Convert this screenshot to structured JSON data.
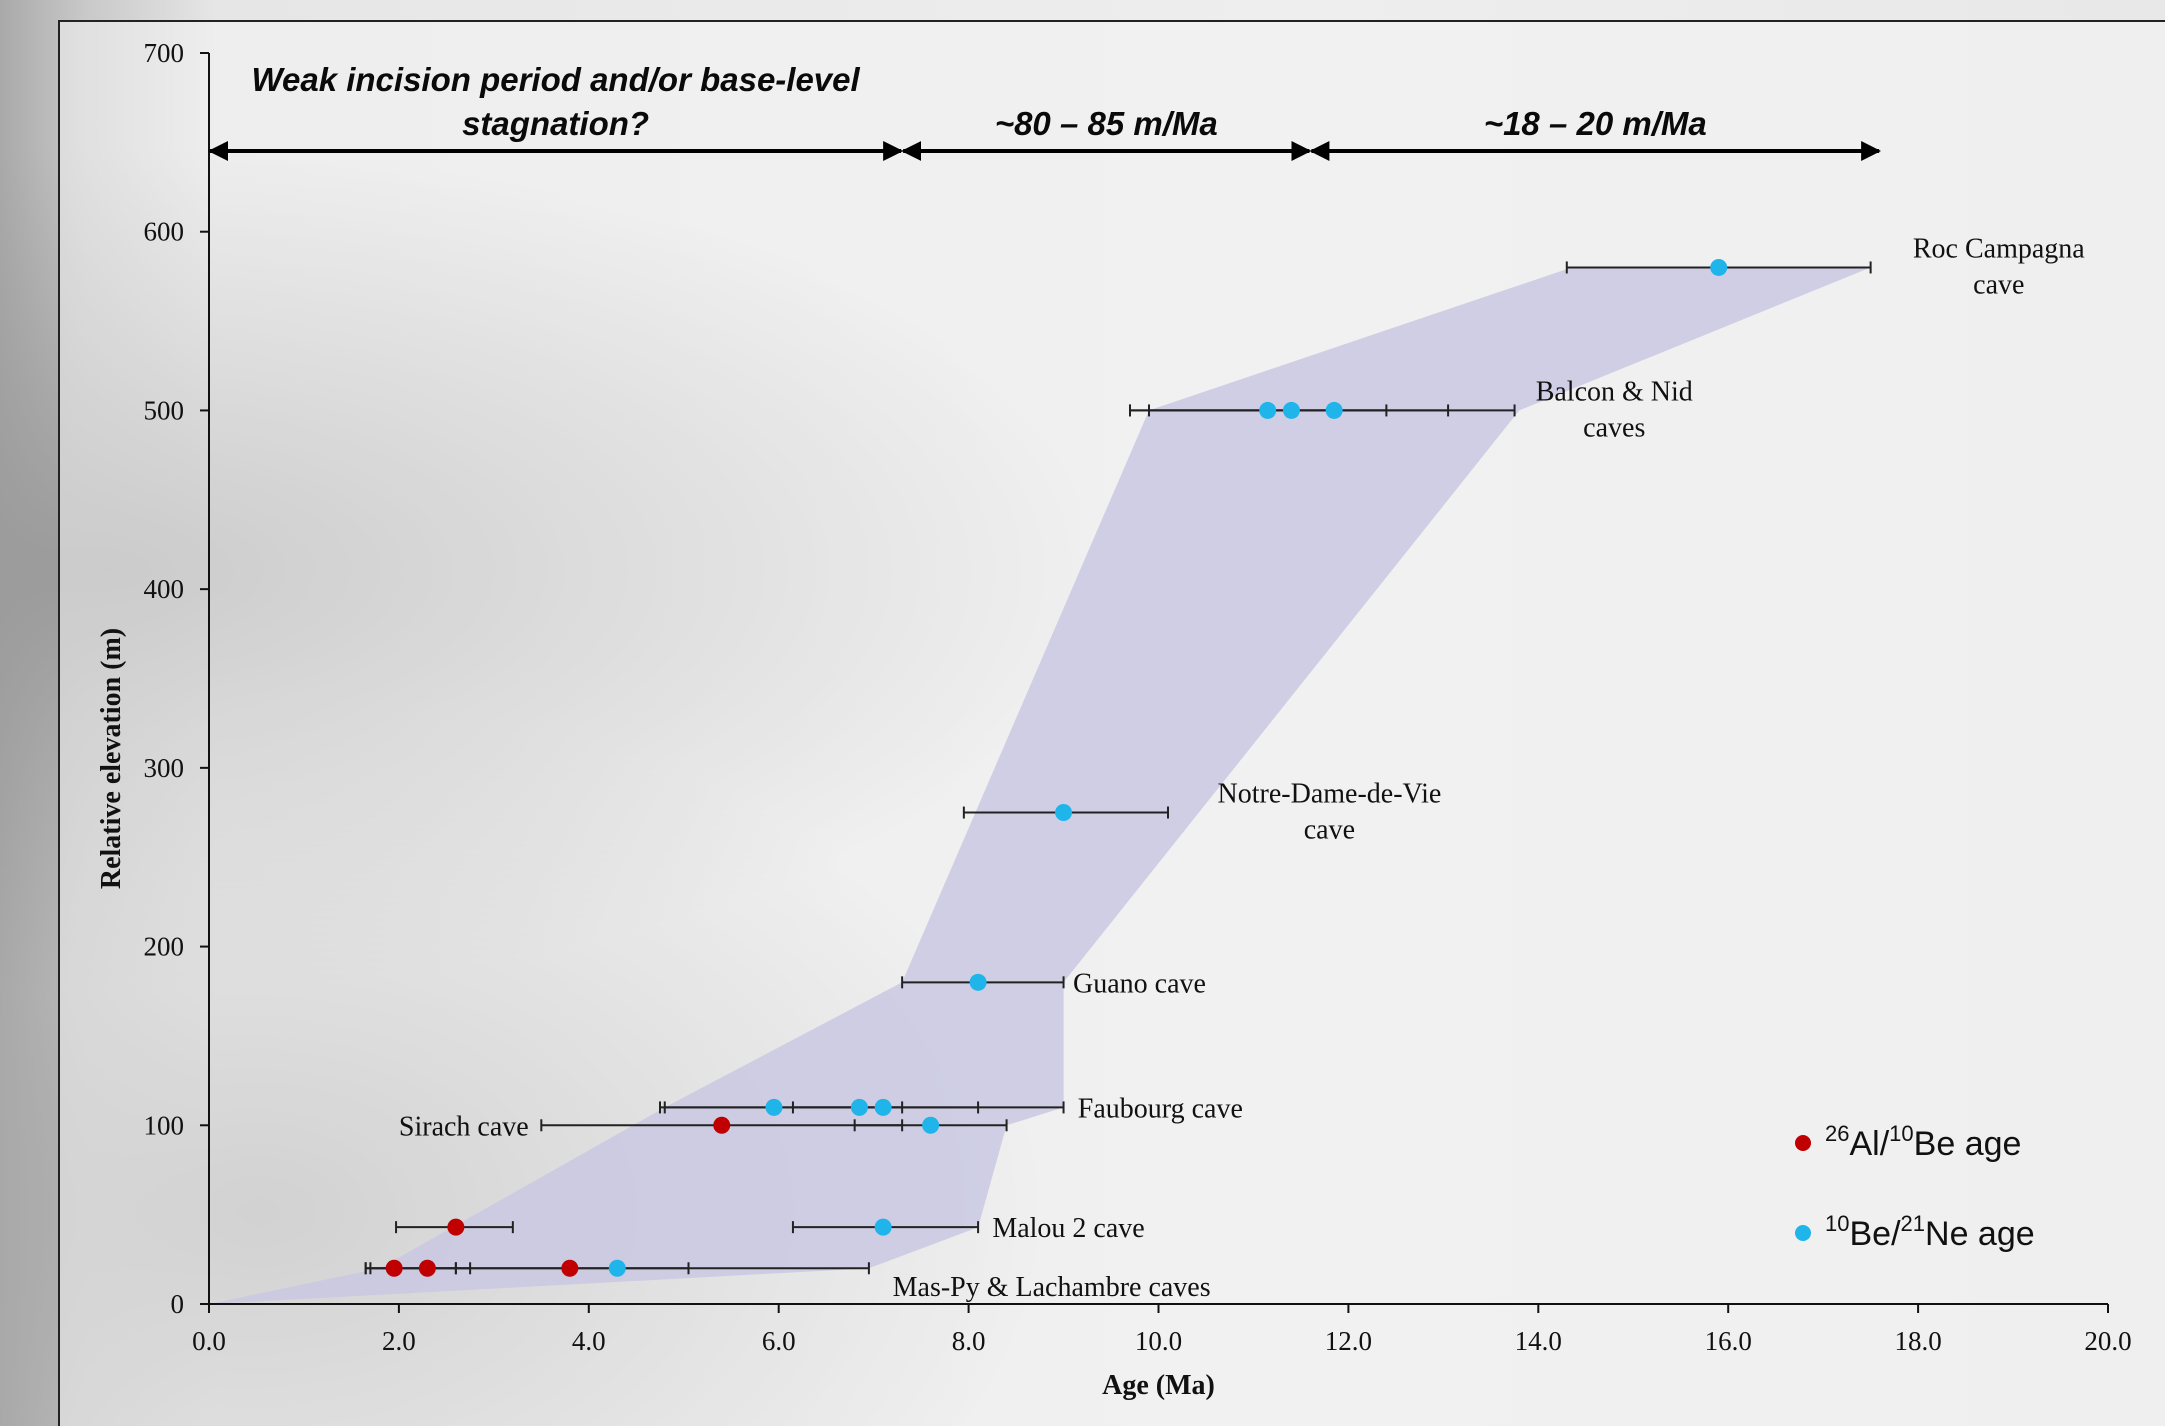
{
  "chart_data": {
    "type": "scatter",
    "xlabel": "Age (Ma)",
    "ylabel": "Relative elevation (m)",
    "xlim": [
      0,
      20
    ],
    "ylim": [
      0,
      700
    ],
    "x_ticks": [
      "0.0",
      "2.0",
      "4.0",
      "6.0",
      "8.0",
      "10.0",
      "12.0",
      "14.0",
      "16.0",
      "18.0",
      "20.0"
    ],
    "y_ticks": [
      "0",
      "100",
      "200",
      "300",
      "400",
      "500",
      "600",
      "700"
    ],
    "colors": {
      "al_be": "#c00000",
      "be_ne": "#1fb4ea",
      "envelope": "#c9c8e2",
      "axis": "#111111"
    },
    "series": [
      {
        "name": "26Al/10Be age",
        "label_parts": [
          [
            "26",
            "sup"
          ],
          [
            "Al/",
            ""
          ],
          [
            "10",
            "sup"
          ],
          [
            "Be age",
            ""
          ]
        ],
        "color": "#c00000",
        "points": [
          {
            "x": 1.95,
            "y": 20,
            "xmin": 1.7,
            "xmax": 2.6
          },
          {
            "x": 2.3,
            "y": 20,
            "xmin": 1.65,
            "xmax": 2.75
          },
          {
            "x": 3.8,
            "y": 20,
            "xmin": 2.6,
            "xmax": 5.05
          },
          {
            "x": 2.6,
            "y": 43,
            "xmin": 1.97,
            "xmax": 3.2
          },
          {
            "x": 5.4,
            "y": 100,
            "xmin": 3.5,
            "xmax": 7.3
          }
        ]
      },
      {
        "name": "10Be/21Ne age",
        "label_parts": [
          [
            "10",
            "sup"
          ],
          [
            "Be/",
            ""
          ],
          [
            "21",
            "sup"
          ],
          [
            "Ne age",
            ""
          ]
        ],
        "color": "#1fb4ea",
        "points": [
          {
            "x": 4.3,
            "y": 20,
            "xmin": 1.65,
            "xmax": 6.95
          },
          {
            "x": 7.1,
            "y": 43,
            "xmin": 6.15,
            "xmax": 8.1
          },
          {
            "x": 7.6,
            "y": 100,
            "xmin": 6.8,
            "xmax": 8.4
          },
          {
            "x": 5.95,
            "y": 110,
            "xmin": 4.75,
            "xmax": 7.3
          },
          {
            "x": 6.85,
            "y": 110,
            "xmin": 6.15,
            "xmax": 8.1
          },
          {
            "x": 7.1,
            "y": 110,
            "xmin": 4.8,
            "xmax": 9.0
          },
          {
            "x": 8.1,
            "y": 180,
            "xmin": 7.3,
            "xmax": 9.0
          },
          {
            "x": 9.0,
            "y": 275,
            "xmin": 7.95,
            "xmax": 10.1
          },
          {
            "x": 11.15,
            "y": 500,
            "xmin": 9.9,
            "xmax": 12.4
          },
          {
            "x": 11.4,
            "y": 500,
            "xmin": 9.7,
            "xmax": 13.05
          },
          {
            "x": 11.85,
            "y": 500,
            "xmin": 9.7,
            "xmax": 13.75
          },
          {
            "x": 15.9,
            "y": 580,
            "xmin": 14.3,
            "xmax": 17.5
          }
        ]
      }
    ],
    "envelope": [
      [
        0,
        0
      ],
      [
        1.8,
        20
      ],
      [
        4.8,
        110
      ],
      [
        7.3,
        180
      ],
      [
        9.9,
        500
      ],
      [
        14.35,
        580
      ],
      [
        17.5,
        580
      ],
      [
        13.8,
        500
      ],
      [
        9.0,
        180
      ],
      [
        9.0,
        110
      ],
      [
        8.4,
        100
      ],
      [
        8.1,
        43
      ],
      [
        6.95,
        20
      ],
      [
        0,
        0
      ]
    ],
    "caves": [
      {
        "text": [
          "Roc Campagna",
          "cave"
        ],
        "x": 18.85,
        "y": 580
      },
      {
        "text": [
          "Balcon & Nid",
          "caves"
        ],
        "x": 14.8,
        "y": 500
      },
      {
        "text": [
          "Notre-Dame-de-Vie",
          "cave"
        ],
        "x": 11.8,
        "y": 275
      },
      {
        "text": [
          "Guano cave"
        ],
        "x": 9.1,
        "y": 180
      },
      {
        "text": [
          "Faubourg cave"
        ],
        "x": 9.15,
        "y": 110
      },
      {
        "text": [
          "Sirach cave"
        ],
        "x": 2.0,
        "y": 100
      },
      {
        "text": [
          "Malou 2 cave"
        ],
        "x": 8.25,
        "y": 43
      },
      {
        "text": [
          "Mas-Py & Lachambre caves"
        ],
        "x": 7.2,
        "y": 10
      }
    ],
    "periods": [
      {
        "text": [
          "Weak incision period and/or base-level",
          "stagnation?"
        ],
        "from": 0,
        "to": 7.3
      },
      {
        "text": [
          "~80 – 85 m/Ma"
        ],
        "from": 7.3,
        "to": 11.6
      },
      {
        "text": [
          "~18 – 20 m/Ma"
        ],
        "from": 11.6,
        "to": 17.6
      }
    ],
    "legend_position": "bottom-right"
  }
}
